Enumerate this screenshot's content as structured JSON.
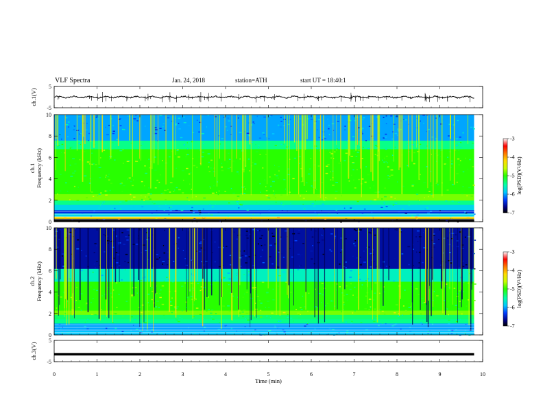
{
  "header": {
    "title": "VLF Spectra",
    "date": "Jan. 24, 2018",
    "station": "station=ATH",
    "start": "start UT =   18:40:1"
  },
  "chart_data": {
    "type": "heatmap",
    "x": {
      "label": "Time (min)",
      "lim": [
        0,
        10
      ],
      "ticks": [
        "0",
        "1",
        "2",
        "3",
        "4",
        "5",
        "6",
        "7",
        "8",
        "9",
        "10"
      ],
      "data_end": 9.8
    },
    "panels": [
      {
        "name": "ch1-waveform",
        "kind": "line",
        "ylabel": "ch.1(V)",
        "ylim": [
          -5,
          5
        ],
        "ticks": [
          "5",
          "-5"
        ],
        "baseline": 0,
        "color": "#000000"
      },
      {
        "name": "ch1-spectrogram",
        "kind": "spectrogram",
        "ylabel_line1": "ch.1",
        "ylabel_line2": "Frequency (kHz)",
        "ylim": [
          0,
          10
        ],
        "ticks": [
          "0",
          "2",
          "4",
          "6",
          "8",
          "10"
        ],
        "bands": [
          {
            "from": 0,
            "to": 0.3,
            "value": -7.0
          },
          {
            "from": 0.3,
            "to": 0.5,
            "value": -4.2
          },
          {
            "from": 0.5,
            "to": 0.8,
            "value": -5.8
          },
          {
            "from": 0.8,
            "to": 1.1,
            "value": -6.4
          },
          {
            "from": 1.1,
            "to": 1.6,
            "value": -5.8
          },
          {
            "from": 1.6,
            "to": 2.0,
            "value": -5.4
          },
          {
            "from": 2.0,
            "to": 2.6,
            "value": -4.8
          },
          {
            "from": 2.6,
            "to": 6.8,
            "value": -5.0
          },
          {
            "from": 6.8,
            "to": 7.6,
            "value": -5.4
          },
          {
            "from": 7.6,
            "to": 10.0,
            "value": -6.0
          }
        ],
        "colorbar": {
          "label": "log(PSD)(V²/Hz)",
          "range": [
            -7,
            -3
          ],
          "ticks": [
            "-3",
            "-4",
            "-5",
            "-6",
            "-7"
          ]
        }
      },
      {
        "name": "ch2-spectrogram",
        "kind": "spectrogram",
        "ylabel_line1": "ch.2",
        "ylabel_line2": "Frequency (kHz)",
        "ylim": [
          0,
          10
        ],
        "ticks": [
          "0",
          "2",
          "4",
          "6",
          "8",
          "10"
        ],
        "bands": [
          {
            "from": 0,
            "to": 0.4,
            "value": -5.9
          },
          {
            "from": 0.4,
            "to": 1.1,
            "value": -6.0
          },
          {
            "from": 1.1,
            "to": 1.5,
            "value": -5.4
          },
          {
            "from": 1.5,
            "to": 1.9,
            "value": -5.3
          },
          {
            "from": 1.9,
            "to": 2.3,
            "value": -4.8
          },
          {
            "from": 2.3,
            "to": 5.0,
            "value": -5.0
          },
          {
            "from": 5.0,
            "to": 6.2,
            "value": -5.6
          },
          {
            "from": 6.2,
            "to": 10.0,
            "value": -6.6
          }
        ],
        "colorbar": {
          "label": "log(PSD)(V²/Hz)",
          "range": [
            -7,
            -3
          ],
          "ticks": [
            "-3",
            "-4",
            "-5",
            "-6",
            "-7"
          ]
        }
      },
      {
        "name": "ch3-waveform",
        "kind": "line",
        "ylabel": "ch.3(V)",
        "ylim": [
          -5,
          5
        ],
        "ticks": [
          "5",
          "-5"
        ],
        "baseline": -1.5,
        "color": "#000000"
      }
    ],
    "colormap": [
      "#ffffff",
      "#ff0000",
      "#ffa000",
      "#ffff00",
      "#00ff00",
      "#00ffff",
      "#0040ff",
      "#000080",
      "#000000"
    ]
  }
}
